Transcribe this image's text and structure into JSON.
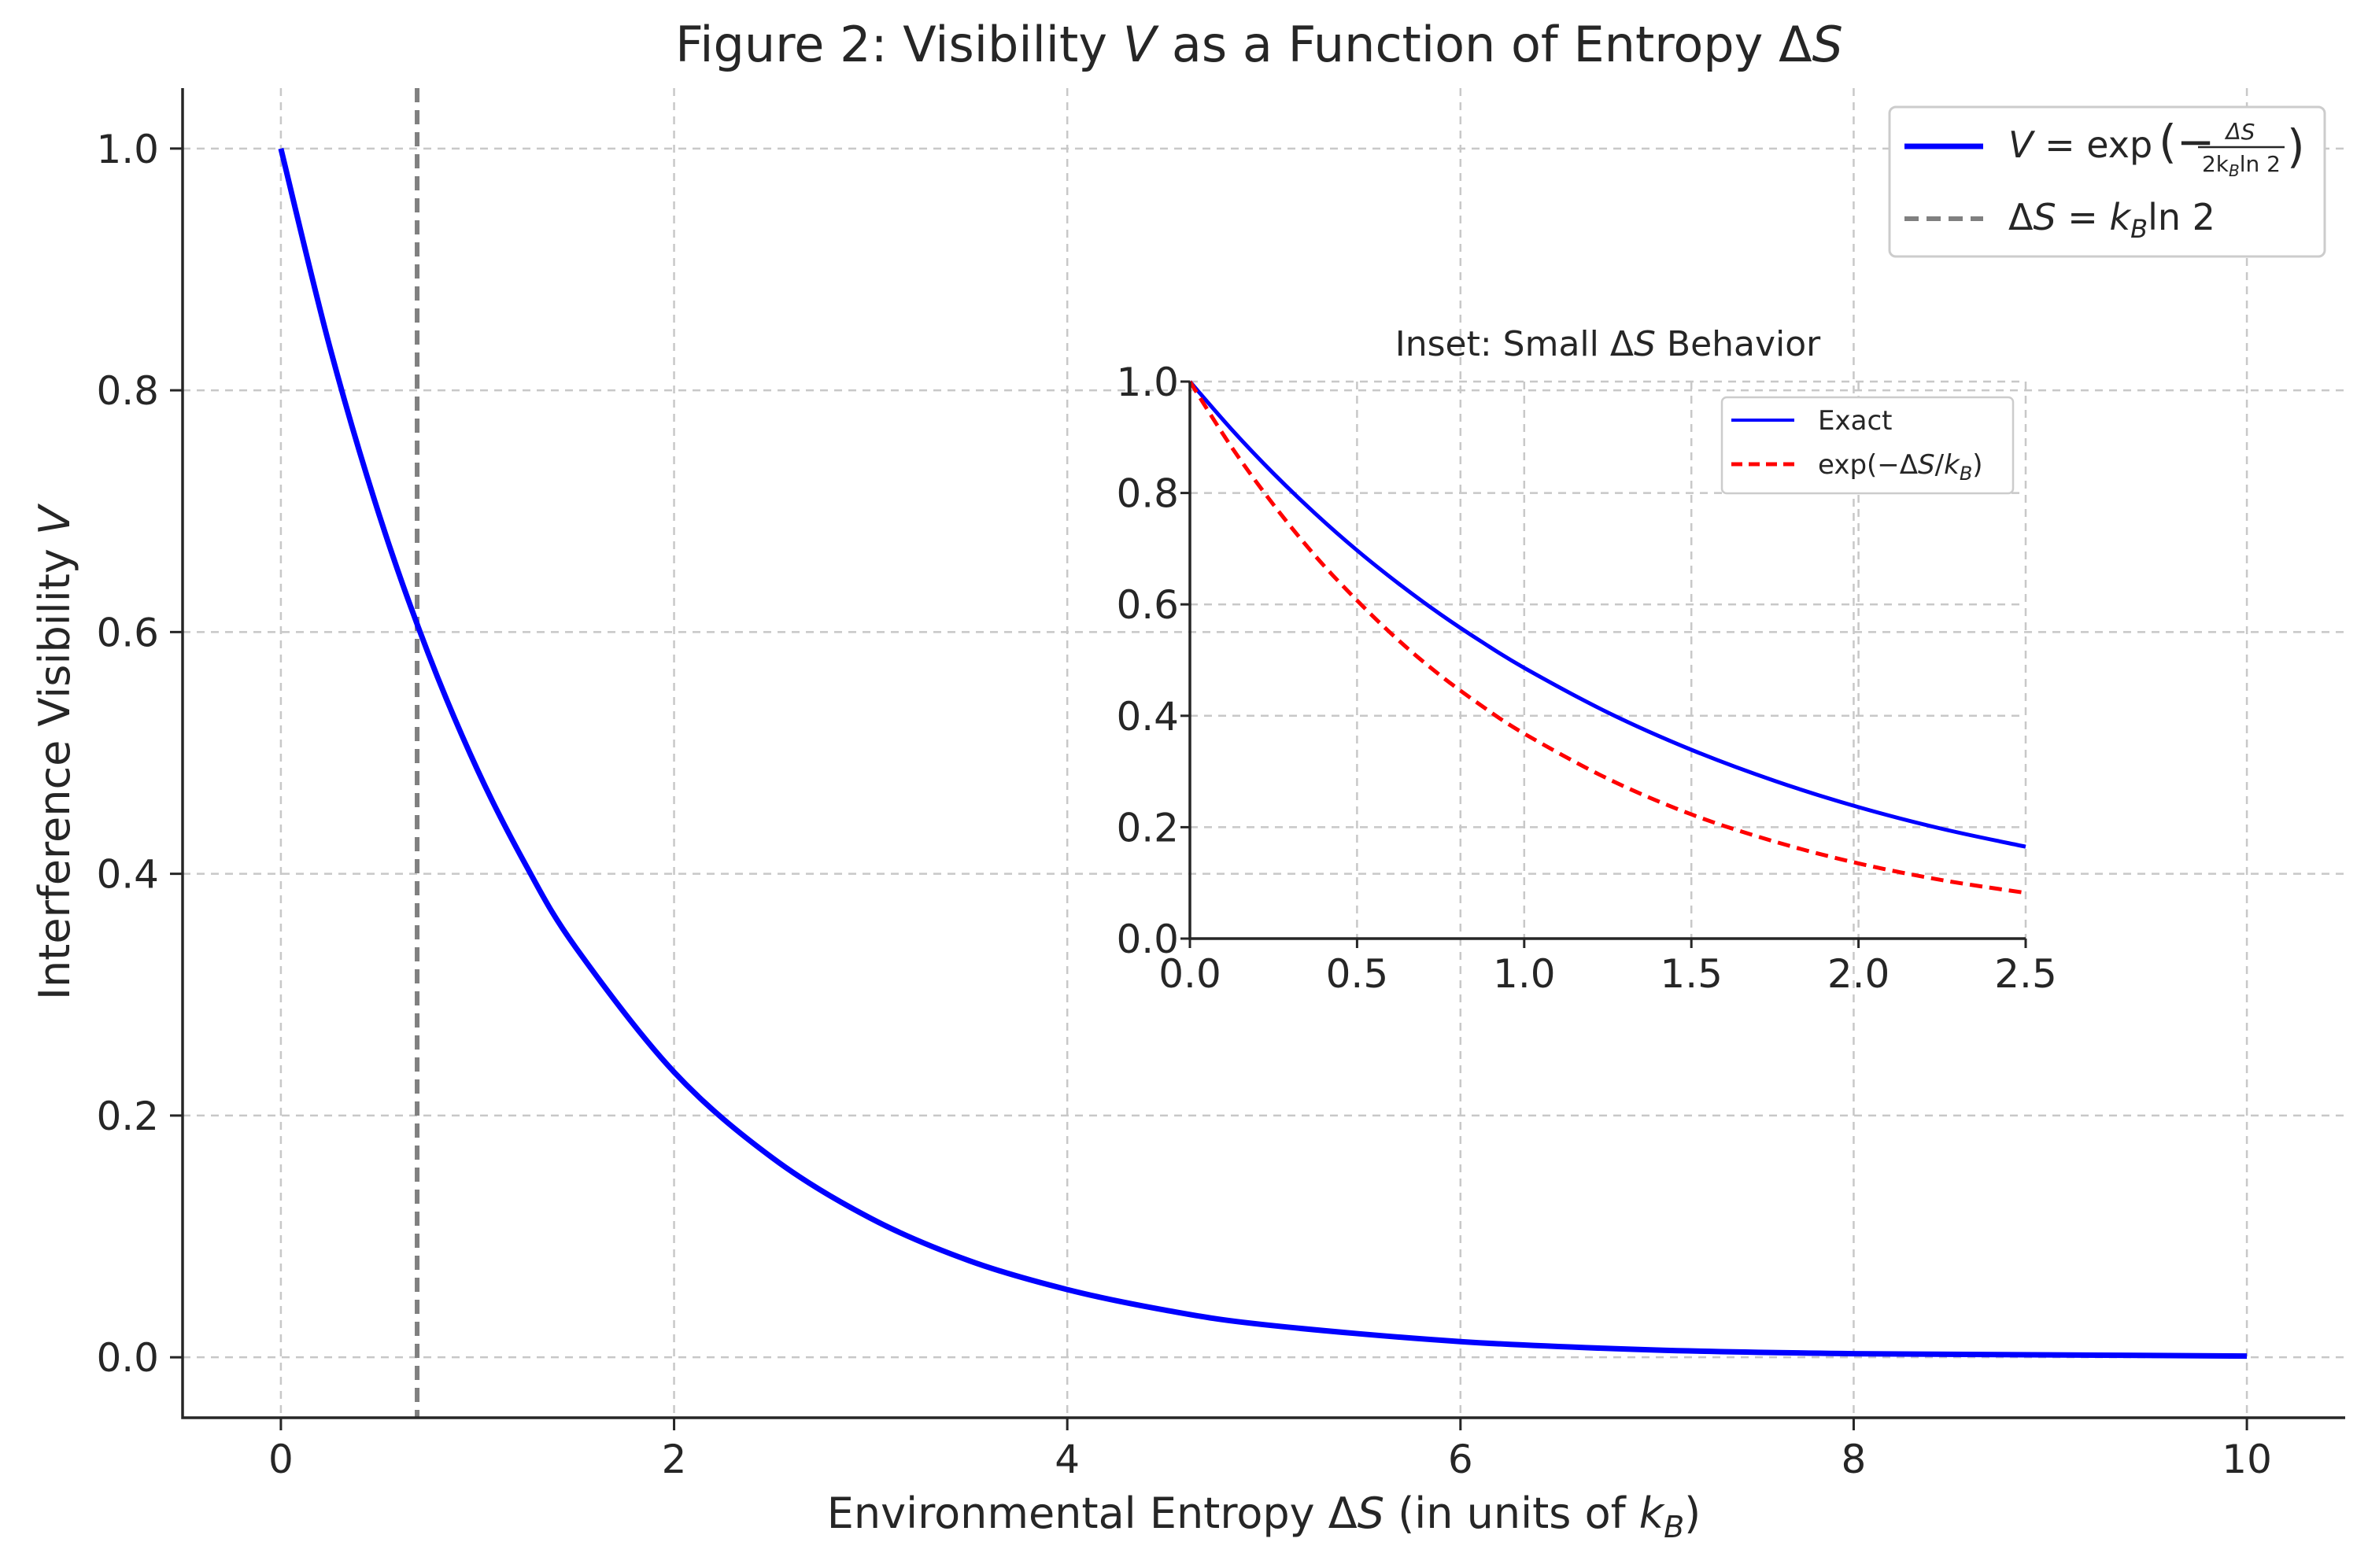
{
  "chart_data": [
    {
      "type": "line",
      "title": "Figure 2: Visibility V as a Function of Entropy ΔS",
      "title_parts": [
        "Figure 2: Visibility ",
        "V",
        " as a Function of Entropy Δ",
        "S"
      ],
      "xlabel": "Environmental Entropy ΔS (in units of k_B)",
      "xlabel_parts": [
        "Environmental Entropy Δ",
        "S",
        " (in units of ",
        "k",
        "B",
        ")"
      ],
      "ylabel": "Interference Visibility V",
      "ylabel_parts": [
        "Interference Visibility ",
        "V"
      ],
      "xlim": [
        -0.5,
        10.5
      ],
      "ylim": [
        -0.05,
        1.05
      ],
      "xticks": [
        0,
        2,
        4,
        6,
        8,
        10
      ],
      "xtick_labels": [
        "0",
        "2",
        "4",
        "6",
        "8",
        "10"
      ],
      "yticks": [
        0.0,
        0.2,
        0.4,
        0.6,
        0.8,
        1.0
      ],
      "ytick_labels": [
        "0.0",
        "0.2",
        "0.4",
        "0.6",
        "0.8",
        "1.0"
      ],
      "grid": true,
      "legend_position": "top-right",
      "x": [
        0,
        0.25,
        0.5,
        0.75,
        1.0,
        1.25,
        1.5,
        2.0,
        2.5,
        3.0,
        3.5,
        4.0,
        4.5,
        5.0,
        6.0,
        7.0,
        8.0,
        9.0,
        10.0
      ],
      "series": [
        {
          "name": "V = exp(−ΔS / (2 k_B ln 2))",
          "legend_parts": [
            "V",
            " = exp",
            "(−",
            "ΔS",
            "2k",
            "B",
            "ln 2",
            ")"
          ],
          "color": "#0000ff",
          "style": "solid",
          "values": [
            1.0,
            0.835,
            0.697,
            0.582,
            0.486,
            0.406,
            0.339,
            0.236,
            0.165,
            0.115,
            0.08,
            0.056,
            0.039,
            0.027,
            0.013,
            0.006,
            0.003,
            0.002,
            0.001
          ]
        }
      ],
      "vline": {
        "name": "ΔS = k_B ln 2",
        "legend_parts": [
          "Δ",
          "S",
          " = ",
          "k",
          "B",
          "ln 2"
        ],
        "x": 0.693,
        "color": "#808080",
        "style": "dashed"
      }
    },
    {
      "type": "line",
      "title": "Inset: Small ΔS Behavior",
      "title_parts": [
        "Inset: Small Δ",
        "S",
        " Behavior"
      ],
      "xlim": [
        0.0,
        2.5
      ],
      "ylim": [
        0.0,
        1.0
      ],
      "xticks": [
        0.0,
        0.5,
        1.0,
        1.5,
        2.0,
        2.5
      ],
      "xtick_labels": [
        "0.0",
        "0.5",
        "1.0",
        "1.5",
        "2.0",
        "2.5"
      ],
      "yticks": [
        0.0,
        0.2,
        0.4,
        0.6,
        0.8,
        1.0
      ],
      "ytick_labels": [
        "0.0",
        "0.2",
        "0.4",
        "0.6",
        "0.8",
        "1.0"
      ],
      "grid": true,
      "legend_position": "top-right",
      "x": [
        0,
        0.125,
        0.25,
        0.375,
        0.5,
        0.625,
        0.75,
        0.875,
        1.0,
        1.25,
        1.5,
        1.75,
        2.0,
        2.25,
        2.5
      ],
      "series": [
        {
          "name": "Exact",
          "legend_parts": [
            "Exact"
          ],
          "color": "#0000ff",
          "style": "solid",
          "values": [
            1.0,
            0.914,
            0.835,
            0.763,
            0.697,
            0.637,
            0.582,
            0.532,
            0.486,
            0.406,
            0.339,
            0.283,
            0.236,
            0.197,
            0.165
          ]
        },
        {
          "name": "exp(−ΔS/k_B)",
          "legend_parts": [
            "exp(−Δ",
            "S",
            "/",
            "k",
            "B",
            ")"
          ],
          "color": "#ff0000",
          "style": "dashed",
          "values": [
            1.0,
            0.882,
            0.779,
            0.687,
            0.607,
            0.535,
            0.472,
            0.417,
            0.368,
            0.287,
            0.223,
            0.174,
            0.135,
            0.105,
            0.082
          ]
        }
      ]
    }
  ]
}
